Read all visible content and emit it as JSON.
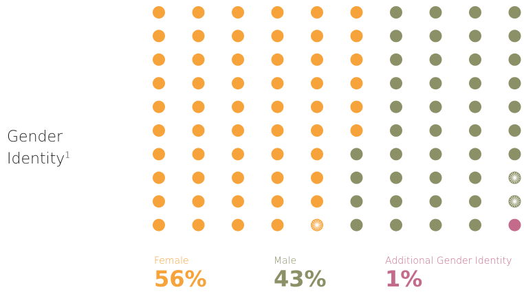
{
  "row_title": "Gender Identity",
  "row_title_line1": "Gender",
  "row_title_line2": "Identity",
  "footnote_marker": "1",
  "colors": {
    "female": "#f7a33b",
    "male": "#8c9066",
    "additional": "#c46b8c"
  },
  "chart_data": {
    "type": "waffle",
    "title": "",
    "grid": {
      "rows": 10,
      "cols": 10
    },
    "fill_order": "column-major, top-to-bottom",
    "series": [
      {
        "name": "Female",
        "value_pct": 56,
        "label": "56%",
        "color": "#f7a33b"
      },
      {
        "name": "Male",
        "value_pct": 43,
        "label": "43%",
        "color": "#8c9066"
      },
      {
        "name": "Additional Gender Identity",
        "value_pct": 1,
        "label": "1%",
        "color": "#c46b8c"
      }
    ],
    "partial_dots": [
      {
        "row": 10,
        "col": 5,
        "series": "Female",
        "note": "starburst"
      },
      {
        "row": 8,
        "col": 10,
        "series": "Male",
        "note": "starburst"
      },
      {
        "row": 9,
        "col": 10,
        "series": "Male",
        "note": "starburst"
      }
    ],
    "legend_position": "bottom"
  },
  "legend": [
    {
      "label": "Female",
      "value": "56%",
      "color": "#f7a33b"
    },
    {
      "label": "Male",
      "value": "43%",
      "color": "#8c9066"
    },
    {
      "label": "Additional Gender Identity",
      "value": "1%",
      "color": "#c46b8c"
    }
  ]
}
